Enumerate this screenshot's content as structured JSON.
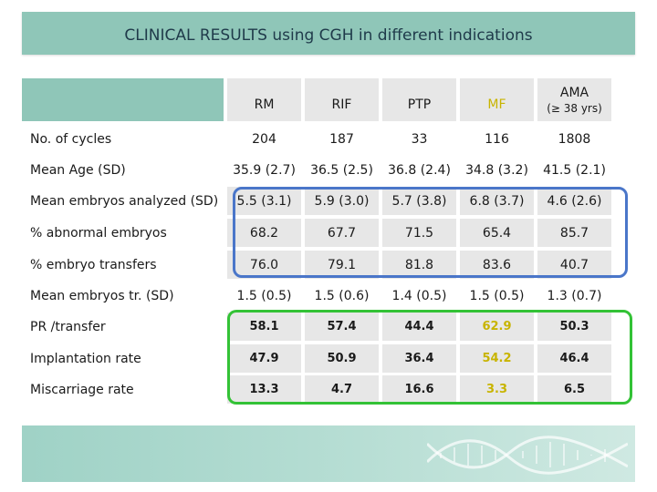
{
  "title": "CLINICAL RESULTS using CGH in different indications",
  "columns": [
    {
      "label": "RM",
      "sub": "",
      "color": "#1a1a1a"
    },
    {
      "label": "RIF",
      "sub": "",
      "color": "#1a1a1a"
    },
    {
      "label": "PTP",
      "sub": "",
      "color": "#1a1a1a"
    },
    {
      "label": "MF",
      "sub": "",
      "color": "#c8b400"
    },
    {
      "label": "AMA",
      "sub": "(≥ 38 yrs)",
      "color": "#1a1a1a"
    }
  ],
  "rows": [
    {
      "label": "No. of cycles",
      "values": [
        "204",
        "187",
        "33",
        "116",
        "1808"
      ],
      "shaded": false,
      "bold": false
    },
    {
      "label": "Mean Age (SD)",
      "values": [
        "35.9 (2.7)",
        "36.5 (2.5)",
        "36.8 (2.4)",
        "34.8 (3.2)",
        "41.5 (2.1)"
      ],
      "shaded": false,
      "bold": false
    },
    {
      "label": "Mean embryos analyzed (SD)",
      "values": [
        "5.5 (3.1)",
        "5.9 (3.0)",
        "5.7 (3.8)",
        "6.8 (3.7)",
        "4.6 (2.6)"
      ],
      "shaded": true,
      "bold": false
    },
    {
      "label": "% abnormal embryos",
      "values": [
        "68.2",
        "67.7",
        "71.5",
        "65.4",
        "85.7"
      ],
      "shaded": true,
      "bold": false
    },
    {
      "label": "% embryo transfers",
      "values": [
        "76.0",
        "79.1",
        "81.8",
        "83.6",
        "40.7"
      ],
      "shaded": true,
      "bold": false
    },
    {
      "label": "Mean embryos tr. (SD)",
      "values": [
        "1.5 (0.5)",
        "1.5 (0.6)",
        "1.4 (0.5)",
        "1.5 (0.5)",
        "1.3 (0.7)"
      ],
      "shaded": false,
      "bold": false
    },
    {
      "label": "PR /transfer",
      "values": [
        "58.1",
        "57.4",
        "44.4",
        "62.9",
        "50.3"
      ],
      "shaded": true,
      "bold": true
    },
    {
      "label": "Implantation rate",
      "values": [
        "47.9",
        "50.9",
        "36.4",
        "54.2",
        "46.4"
      ],
      "shaded": true,
      "bold": true
    },
    {
      "label": "Miscarriage rate",
      "values": [
        "13.3",
        "4.7",
        "16.6",
        "3.3",
        "6.5"
      ],
      "shaded": true,
      "bold": true
    }
  ],
  "mf_highlight_color": "#c8b400",
  "colors": {
    "accent": "#8fc6b8",
    "blue_outline": "#4a76c9",
    "green_outline": "#33c236"
  }
}
